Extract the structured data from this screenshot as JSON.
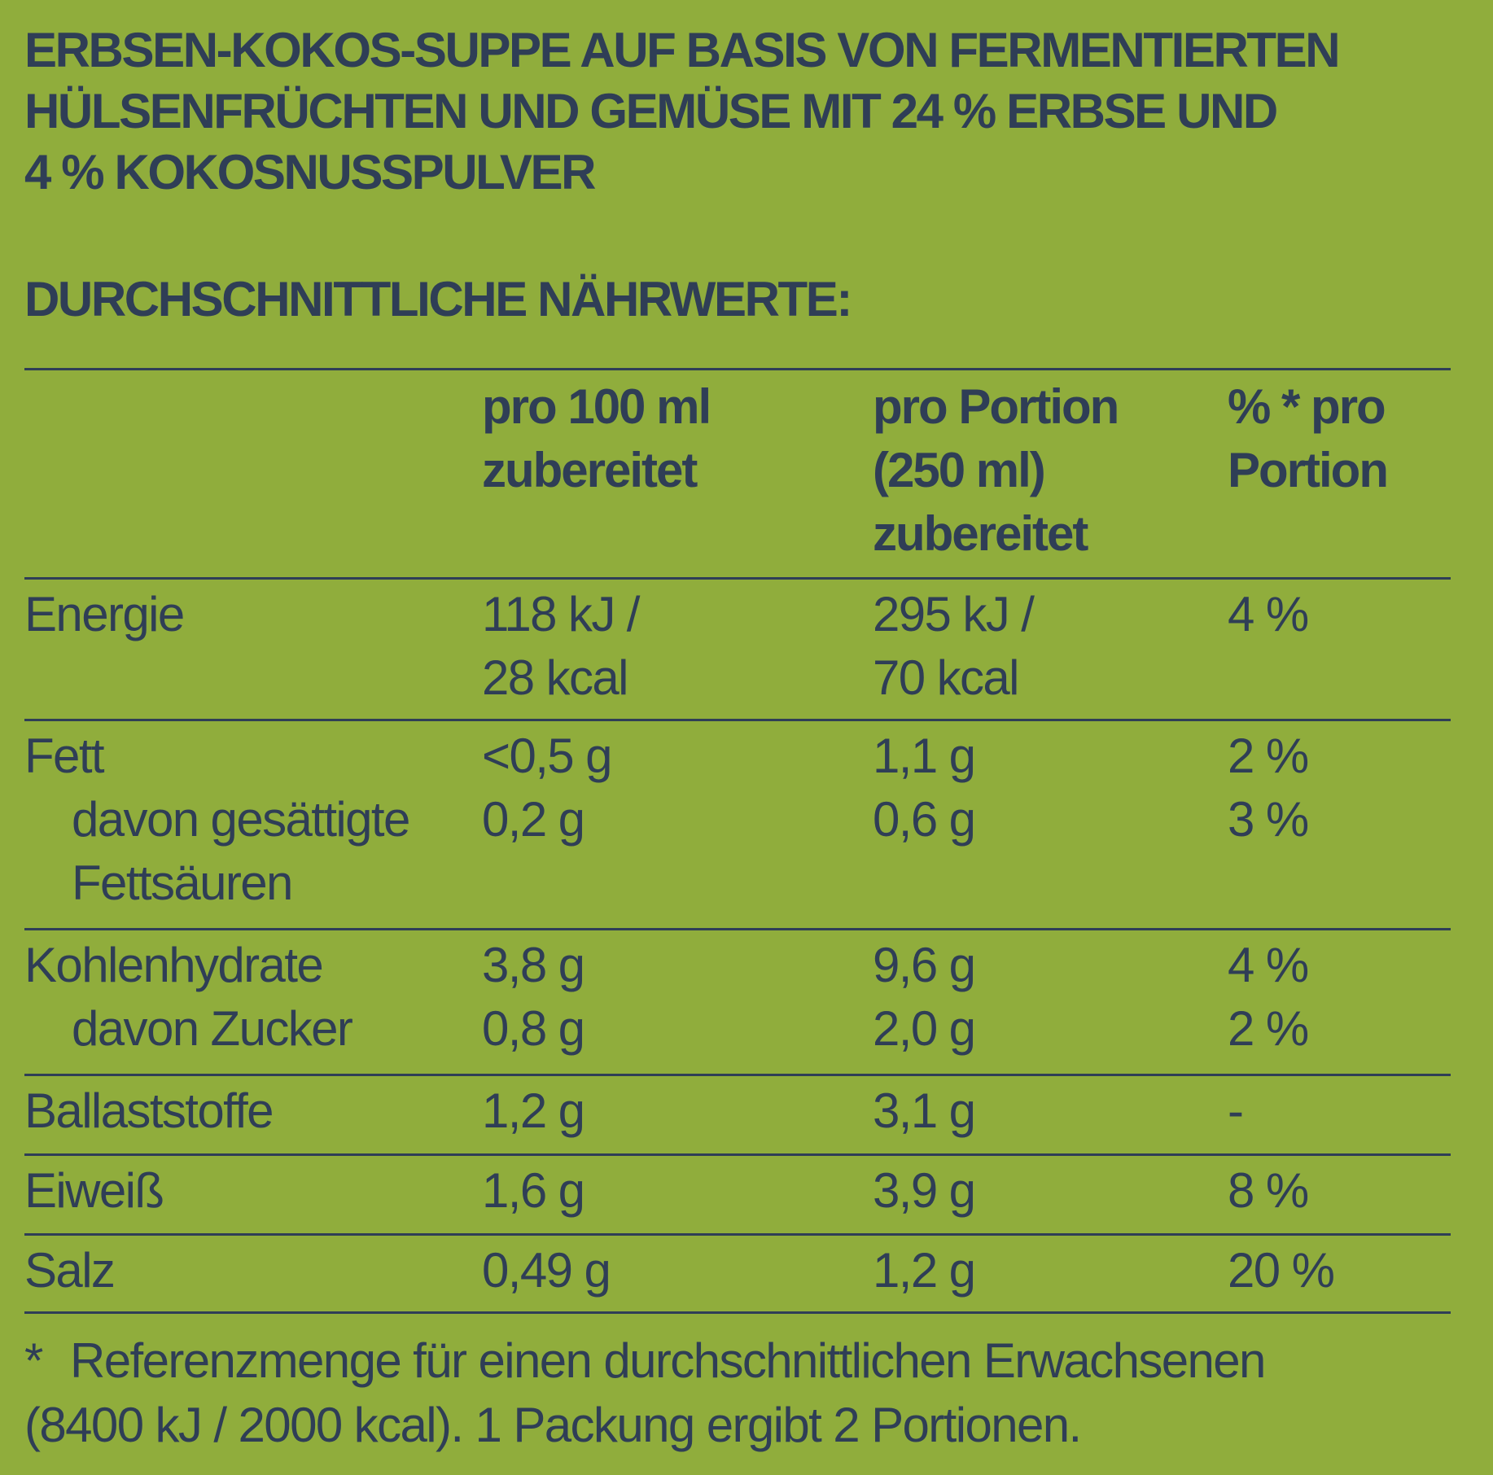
{
  "title_lines": [
    "ERBSEN-KOKOS-SUPPE AUF BASIS VON FERMENTIERTEN",
    "HÜLSENFRÜCHTEN UND GEMÜSE MIT 24 % ERBSE UND",
    "4 % KOKOSNUSSPULVER"
  ],
  "subtitle": "DURCHSCHNITTLICHE NÄHRWERTE:",
  "table": {
    "headers": {
      "col1": "",
      "col2": [
        "pro 100 ml",
        "zubereitet"
      ],
      "col3": [
        "pro Portion",
        "(250 ml)",
        "zubereitet"
      ],
      "col4": [
        "% * pro",
        "Portion"
      ]
    },
    "rows": {
      "energie": {
        "label": "Energie",
        "per100": [
          "118 kJ /",
          "28 kcal"
        ],
        "portion": [
          "295 kJ /",
          "70 kcal"
        ],
        "percent": "4 %"
      },
      "fett": {
        "label": "Fett",
        "per100": "<0,5 g",
        "portion": "1,1 g",
        "percent": "2 %"
      },
      "gesaettigte": {
        "label": [
          "davon gesättigte",
          "Fettsäuren"
        ],
        "per100": "0,2 g",
        "portion": "0,6 g",
        "percent": "3 %"
      },
      "kohlenhydrate": {
        "label": "Kohlenhydrate",
        "per100": "3,8 g",
        "portion": "9,6 g",
        "percent": "4 %"
      },
      "zucker": {
        "label": "davon Zucker",
        "per100": "0,8 g",
        "portion": "2,0 g",
        "percent": "2 %"
      },
      "ballaststoffe": {
        "label": "Ballaststoffe",
        "per100": "1,2 g",
        "portion": "3,1 g",
        "percent": "-"
      },
      "eiweiss": {
        "label": "Eiweiß",
        "per100": "1,6 g",
        "portion": "3,9 g",
        "percent": "8 %"
      },
      "salz": {
        "label": "Salz",
        "per100": "0,49 g",
        "portion": "1,2 g",
        "percent": "20 %"
      }
    }
  },
  "footnote": {
    "star": "*",
    "line1": "Referenzmenge für einen durchschnittlichen Erwachsenen",
    "line2": "(8400 kJ / 2000 kcal). 1 Packung ergibt 2 Portionen."
  },
  "colors": {
    "background": "#90AD3C",
    "text": "#2F3E56"
  }
}
